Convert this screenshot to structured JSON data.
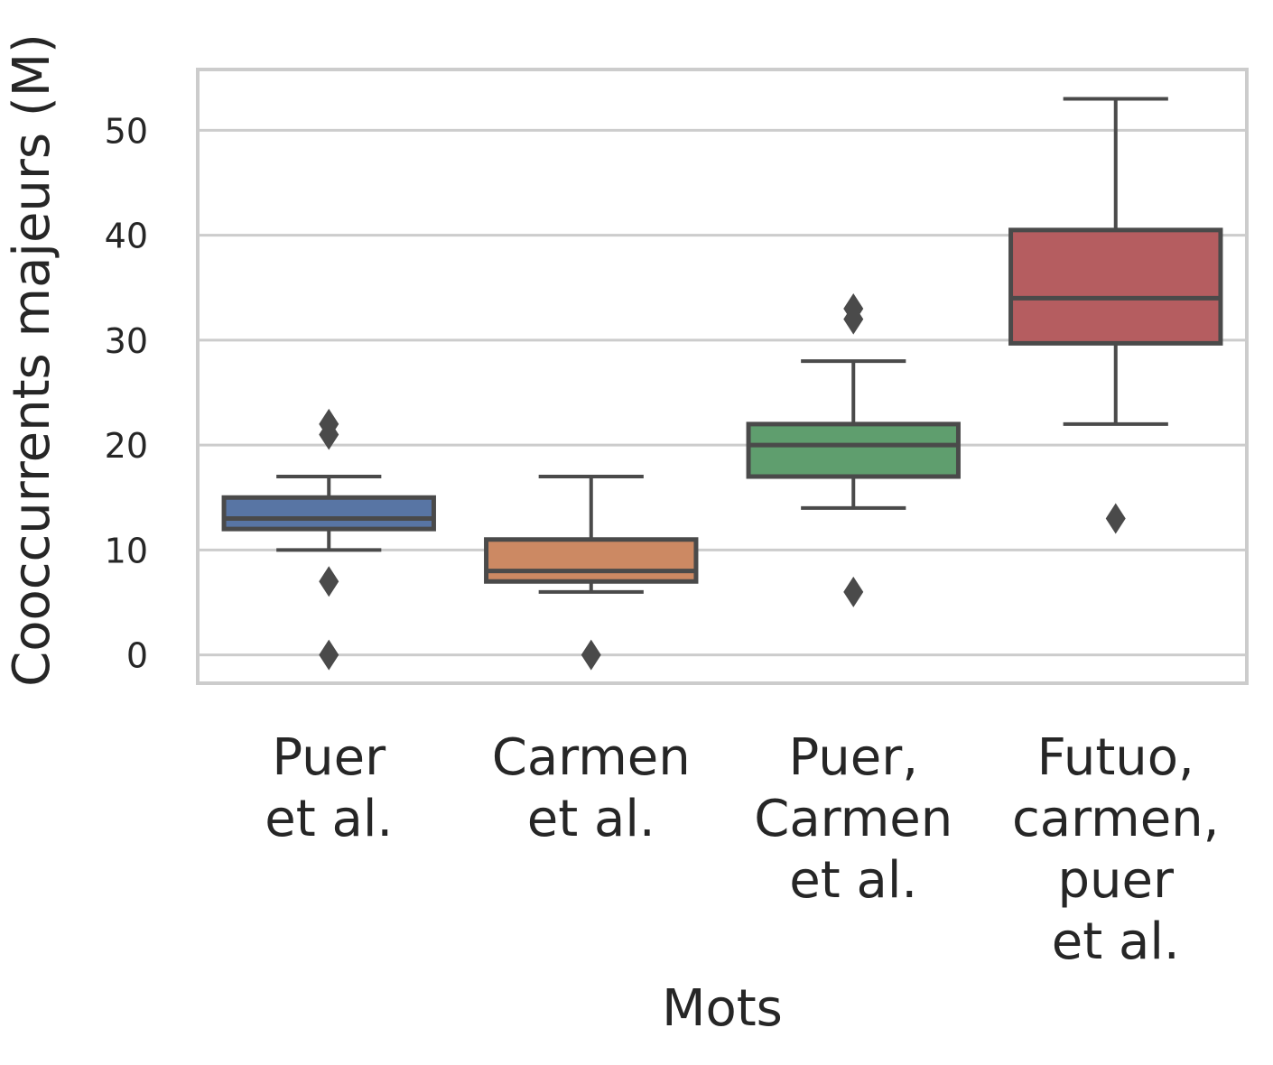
{
  "chart_data": {
    "type": "box",
    "xlabel": "Mots",
    "ylabel": "Cooccurrents majeurs (M)",
    "ylim": [
      -2.7,
      55.8
    ],
    "yticks": [
      0,
      10,
      20,
      30,
      40,
      50
    ],
    "grid": "horizontal",
    "legend": "none",
    "categories": [
      [
        "Puer",
        "et al."
      ],
      [
        "Carmen",
        "et al."
      ],
      [
        "Puer,",
        "Carmen",
        "et al."
      ],
      [
        "Futuo,",
        "carmen,",
        "puer",
        "et al."
      ]
    ],
    "series": [
      {
        "q1": 12,
        "median": 13,
        "q3": 15,
        "whisker_low": 10,
        "whisker_high": 17,
        "outliers": [
          22,
          21,
          7,
          0
        ],
        "color": "#5875A4"
      },
      {
        "q1": 7,
        "median": 8,
        "q3": 11,
        "whisker_low": 6,
        "whisker_high": 17,
        "outliers": [
          0
        ],
        "color": "#CC8963"
      },
      {
        "q1": 17,
        "median": 20,
        "q3": 22,
        "whisker_low": 14,
        "whisker_high": 28,
        "outliers": [
          33,
          32,
          6
        ],
        "color": "#5F9E6E"
      },
      {
        "q1": 29.7,
        "median": 34,
        "q3": 40.5,
        "whisker_low": 22,
        "whisker_high": 53,
        "outliers": [
          13
        ],
        "color": "#B55D60"
      }
    ]
  }
}
